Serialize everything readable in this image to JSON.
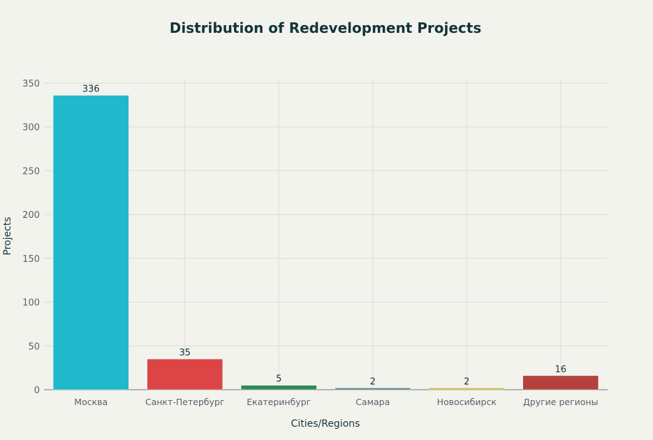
{
  "chart_data": {
    "type": "bar",
    "title": "Distribution of Redevelopment Projects",
    "xlabel": "Cities/Regions",
    "ylabel": "Projects",
    "categories": [
      "Москва",
      "Санкт-Петербург",
      "Екатеринбург",
      "Самара",
      "Новосибирск",
      "Другие регионы"
    ],
    "values": [
      336,
      35,
      5,
      2,
      2,
      16
    ],
    "colors": [
      "#1FB8CD",
      "#DB4545",
      "#2E8B57",
      "#5D878F",
      "#D2BA4C",
      "#B4413C"
    ],
    "ylim": [
      0,
      350
    ],
    "yticks": [
      0,
      50,
      100,
      150,
      200,
      250,
      300,
      350
    ],
    "grid": true,
    "data_labels": true
  }
}
